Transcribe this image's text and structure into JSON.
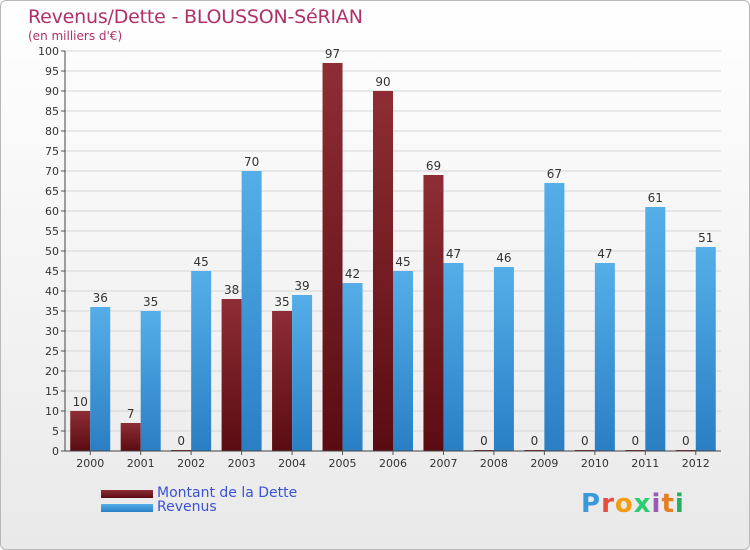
{
  "chart_data": {
    "type": "bar",
    "title": "Revenus/Dette - BLOUSSON-SéRIAN",
    "subtitle": "(en milliers d'€)",
    "xlabel": "",
    "ylabel": "",
    "ylim": [
      0,
      100
    ],
    "yticks": [
      0,
      5,
      10,
      15,
      20,
      25,
      30,
      35,
      40,
      45,
      50,
      55,
      60,
      65,
      70,
      75,
      80,
      85,
      90,
      95,
      100
    ],
    "grid": true,
    "categories": [
      "2000",
      "2001",
      "2002",
      "2003",
      "2004",
      "2005",
      "2006",
      "2007",
      "2008",
      "2009",
      "2010",
      "2011",
      "2012"
    ],
    "series": [
      {
        "name": "Montant de la Dette",
        "color": "#7a1f26",
        "values": [
          10,
          7,
          0,
          38,
          35,
          97,
          90,
          69,
          0,
          0,
          0,
          0,
          0
        ]
      },
      {
        "name": "Revenus",
        "color": "#3c96dc",
        "values": [
          36,
          35,
          45,
          70,
          39,
          42,
          45,
          47,
          46,
          67,
          47,
          61,
          51
        ]
      }
    ],
    "legend_position": "bottom-left"
  },
  "brand": {
    "logo_letters": [
      "P",
      "r",
      "o",
      "x",
      "i",
      "t",
      "i"
    ],
    "logo_colors": [
      "#3a9ad9",
      "#e74c3c",
      "#f39c12",
      "#2ecc71",
      "#9b59b6",
      "#e67e22",
      "#27ae60"
    ]
  }
}
